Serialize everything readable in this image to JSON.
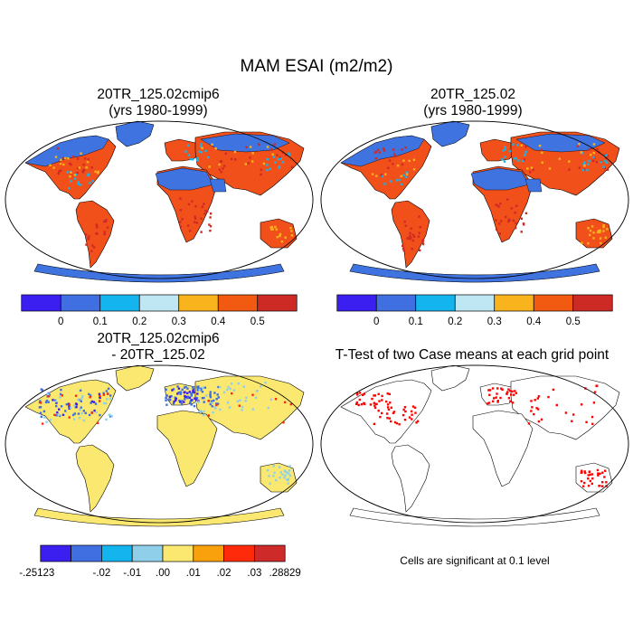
{
  "title": "MAM ESAI (m2/m2)",
  "panels": {
    "p1": {
      "title1": "20TR_125.02cmip6",
      "title2": "(yrs 1980-1999)"
    },
    "p2": {
      "title1": "20TR_125.02",
      "title2": "(yrs 1980-1999)"
    },
    "p3": {
      "title1": "20TR_125.02cmip6",
      "title2": "- 20TR_125.02"
    },
    "p4": {
      "title1": "T-Test of two Case means at each grid point"
    }
  },
  "colorbars": {
    "top": {
      "colors": [
        "#3b1ff0",
        "#3f6fe0",
        "#14b4ee",
        "#bfe6f3",
        "#f9b31c",
        "#f25a12",
        "#cd2a26"
      ],
      "labels": [
        "0",
        "0.1",
        "0.2",
        "0.3",
        "0.4",
        "0.5"
      ]
    },
    "diff": {
      "colors": [
        "#3b1ff0",
        "#3f6fe0",
        "#14b4ee",
        "#8fcfea",
        "#fbe870",
        "#f8a10c",
        "#ff2a0a",
        "#cf2a2a"
      ],
      "labels": [
        "-.25123",
        "-.02",
        "-.01",
        ".00",
        ".01",
        ".02",
        ".03",
        ".28829"
      ]
    }
  },
  "significance_note": "Cells are significant at 0.1 level",
  "map_colors": {
    "ocean": "#ffffff",
    "land_high": "#f2501a",
    "land_low": "#3f74e0",
    "diff_land": "#fbe870",
    "diff_neg": "#3f6fe0",
    "signif": "#ff0000"
  }
}
